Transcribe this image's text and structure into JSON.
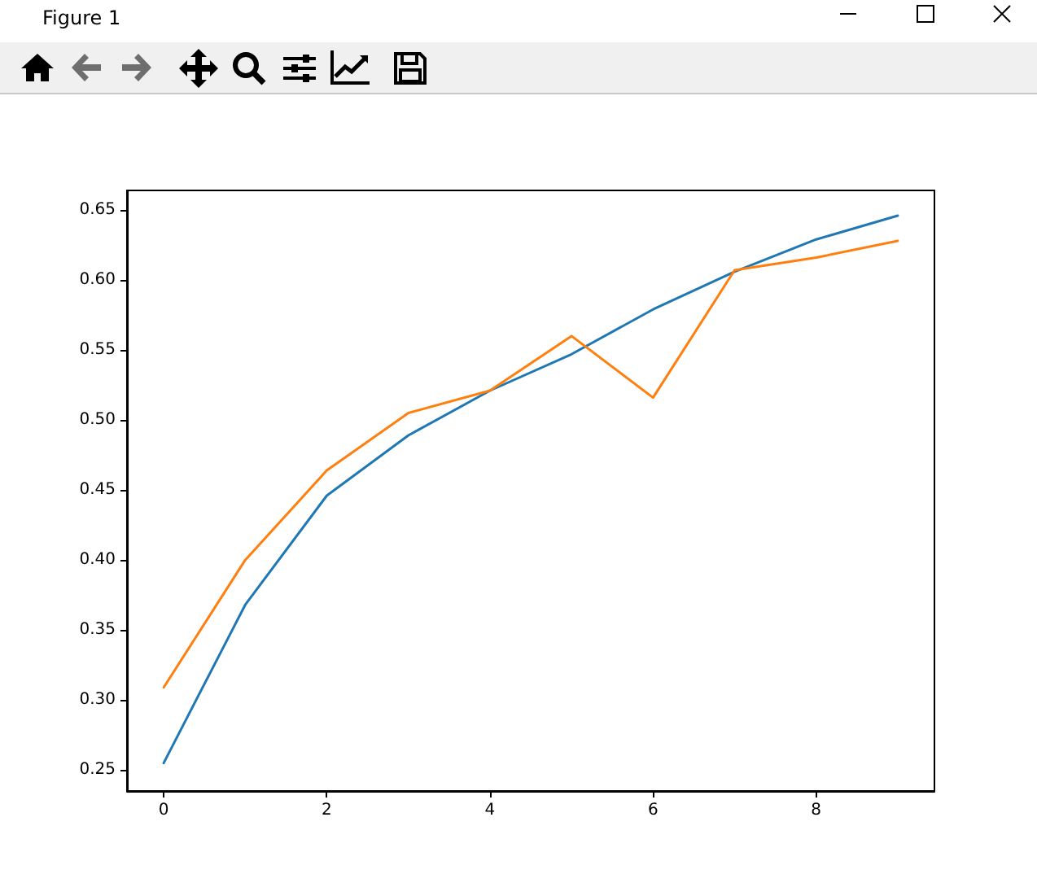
{
  "chart_data": {
    "type": "line",
    "annotations": [
      "Figure 1"
    ],
    "x": [
      0,
      1,
      2,
      3,
      4,
      5,
      6,
      7,
      8,
      9
    ],
    "series": [
      {
        "color": "#1f77b4",
        "values": [
          0.255,
          0.368,
          0.446,
          0.489,
          0.521,
          0.547,
          0.579,
          0.606,
          0.629,
          0.646
        ]
      },
      {
        "color": "#ff7f0e",
        "values": [
          0.309,
          0.4,
          0.464,
          0.505,
          0.521,
          0.56,
          0.516,
          0.607,
          0.616,
          0.628
        ]
      }
    ],
    "xlim": [
      -0.45,
      9.45
    ],
    "xticks": [
      0,
      2,
      4,
      6,
      8
    ],
    "ylim": [
      0.235,
      0.664
    ],
    "yticks": [
      {
        "value": 0.25,
        "label": "0.25"
      },
      {
        "value": 0.3,
        "label": "0.30"
      },
      {
        "value": 0.35,
        "label": "0.35"
      },
      {
        "value": 0.4,
        "label": "0.40"
      },
      {
        "value": 0.45,
        "label": "0.45"
      },
      {
        "value": 0.5,
        "label": "0.50"
      },
      {
        "value": 0.55,
        "label": "0.55"
      },
      {
        "value": 0.6,
        "label": "0.60"
      },
      {
        "value": 0.65,
        "label": "0.65"
      }
    ],
    "grid": false,
    "marker": "none",
    "line_style": "solid"
  }
}
